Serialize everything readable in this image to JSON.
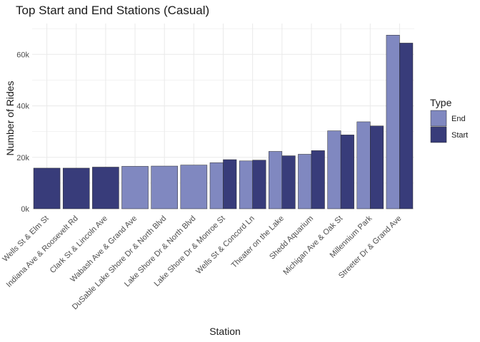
{
  "chart_data": {
    "type": "bar",
    "title": "Top Start and End Stations (Casual)",
    "xlabel": "Station",
    "ylabel": "Number of Rides",
    "categories": [
      "Wells St & Elm St",
      "Indiana Ave & Roosevelt Rd",
      "Clark St & Lincoln Ave",
      "Wabash Ave & Grand Ave",
      "DuSable Lake Shore Dr & North Blvd",
      "Lake Shore Dr & North Blvd",
      "Lake Shore Dr & Monroe St",
      "Wells St & Concord Ln",
      "Theater on the Lake",
      "Shedd Aquarium",
      "Michigan Ave & Oak St",
      "Millennium Park",
      "Streeter Dr & Grand Ave"
    ],
    "series": [
      {
        "name": "End",
        "values": [
          null,
          null,
          null,
          16500,
          16600,
          17000,
          17900,
          18600,
          22300,
          21200,
          30300,
          33800,
          67500
        ]
      },
      {
        "name": "Start",
        "values": [
          15800,
          15800,
          16200,
          null,
          null,
          null,
          19100,
          18900,
          20600,
          22600,
          28700,
          32200,
          64400
        ]
      }
    ],
    "ylim": [
      0,
      72000
    ],
    "yticks": [
      0,
      20000,
      40000,
      60000
    ],
    "ytick_labels": [
      "0k",
      "20k",
      "40k",
      "60k"
    ],
    "legend": {
      "title": "Type",
      "position": "right"
    },
    "grid": true,
    "colors": {
      "End": "#8088c0",
      "Start": "#383c7a",
      "grid": "#ebebeb",
      "bar_border": "#2b2b2b"
    }
  }
}
